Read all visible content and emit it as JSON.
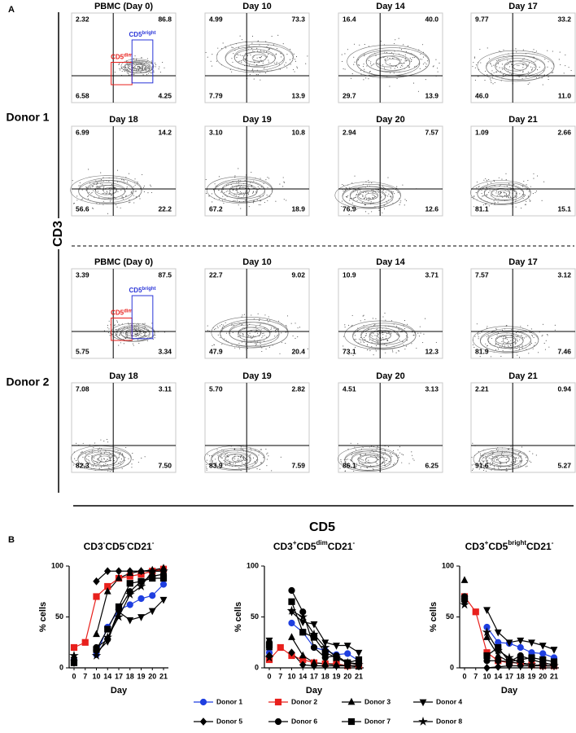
{
  "panel_a": {
    "label": "A",
    "y_axis_label": "CD3",
    "x_axis_label": "CD5",
    "donors": [
      {
        "label": "Donor 1",
        "gates": [
          {
            "base": "CD5",
            "sup": "dim",
            "color": "#e8201c"
          },
          {
            "base": "CD5",
            "sup": "bright",
            "color": "#2a35d8"
          }
        ],
        "plots": [
          {
            "title": "PBMC (Day 0)",
            "quadrants": [
              "2.32",
              "86.8",
              "6.58",
              "4.25"
            ]
          },
          {
            "title": "Day 10",
            "quadrants": [
              "4.99",
              "73.3",
              "7.79",
              "13.9"
            ]
          },
          {
            "title": "Day 14",
            "quadrants": [
              "16.4",
              "40.0",
              "29.7",
              "13.9"
            ]
          },
          {
            "title": "Day 17",
            "quadrants": [
              "9.77",
              "33.2",
              "46.0",
              "11.0"
            ]
          },
          {
            "title": "Day 18",
            "quadrants": [
              "6.99",
              "14.2",
              "56.6",
              "22.2"
            ]
          },
          {
            "title": "Day 19",
            "quadrants": [
              "3.10",
              "10.8",
              "67.2",
              "18.9"
            ]
          },
          {
            "title": "Day 20",
            "quadrants": [
              "2.94",
              "7.57",
              "76.9",
              "12.6"
            ]
          },
          {
            "title": "Day 21",
            "quadrants": [
              "1.09",
              "2.66",
              "81.1",
              "15.1"
            ]
          }
        ]
      },
      {
        "label": "Donor 2",
        "gates": [
          {
            "base": "CD5",
            "sup": "dim",
            "color": "#e8201c"
          },
          {
            "base": "CD5",
            "sup": "bright",
            "color": "#2a35d8"
          }
        ],
        "plots": [
          {
            "title": "PBMC (Day 0)",
            "quadrants": [
              "3.39",
              "87.5",
              "5.75",
              "3.34"
            ]
          },
          {
            "title": "Day 10",
            "quadrants": [
              "22.7",
              "9.02",
              "47.9",
              "20.4"
            ]
          },
          {
            "title": "Day 14",
            "quadrants": [
              "10.9",
              "3.71",
              "73.1",
              "12.3"
            ]
          },
          {
            "title": "Day 17",
            "quadrants": [
              "7.57",
              "3.12",
              "81.9",
              "7.46"
            ]
          },
          {
            "title": "Day 18",
            "quadrants": [
              "7.08",
              "3.11",
              "82.3",
              "7.50"
            ]
          },
          {
            "title": "Day 19",
            "quadrants": [
              "5.70",
              "2.82",
              "83.9",
              "7.59"
            ]
          },
          {
            "title": "Day 20",
            "quadrants": [
              "4.51",
              "3.13",
              "86.1",
              "6.25"
            ]
          },
          {
            "title": "Day 21",
            "quadrants": [
              "2.21",
              "0.94",
              "91.6",
              "5.27"
            ]
          }
        ]
      }
    ]
  },
  "panel_b": {
    "label": "B"
  },
  "chart_data": [
    {
      "type": "line",
      "title": [
        "CD3",
        "-",
        "CD5",
        "-",
        "CD21",
        "-"
      ],
      "y_label": "% cells",
      "x_label": "Day",
      "categories": [
        "0",
        "7",
        "10",
        "14",
        "17",
        "18",
        "19",
        "20",
        "21"
      ],
      "ylim": [
        0,
        100
      ],
      "yticks": [
        0,
        50,
        100
      ],
      "series": [
        {
          "name": "Donor 1",
          "color": "#1f3fe0",
          "marker": "circle",
          "values": [
            8,
            null,
            13,
            40,
            57,
            62,
            68,
            71,
            82
          ]
        },
        {
          "name": "Donor 2",
          "color": "#e8201c",
          "marker": "square",
          "values": [
            20,
            25,
            70,
            80,
            88,
            90,
            92,
            95,
            97
          ]
        },
        {
          "name": "Donor 3",
          "color": "#000000",
          "marker": "triangle",
          "values": [
            10,
            null,
            33,
            75,
            88,
            93,
            95,
            96,
            98
          ]
        },
        {
          "name": "Donor 4",
          "color": "#000000",
          "marker": "triangle-down",
          "values": [
            5,
            null,
            15,
            26,
            55,
            47,
            50,
            56,
            67
          ]
        },
        {
          "name": "Donor 5",
          "color": "#000000",
          "marker": "diamond",
          "values": [
            10,
            null,
            85,
            95,
            95,
            95,
            95,
            95,
            95
          ]
        },
        {
          "name": "Donor 6",
          "color": "#000000",
          "marker": "circle",
          "values": [
            6,
            null,
            20,
            28,
            57,
            75,
            85,
            90,
            92
          ]
        },
        {
          "name": "Donor 7",
          "color": "#000000",
          "marker": "square",
          "values": [
            5,
            null,
            18,
            38,
            60,
            83,
            85,
            88,
            88
          ]
        },
        {
          "name": "Donor 8",
          "color": "#000000",
          "marker": "star",
          "values": [
            12,
            null,
            12,
            30,
            50,
            72,
            80,
            95,
            95
          ]
        }
      ]
    },
    {
      "type": "line",
      "title": [
        "CD3",
        "+",
        "CD5",
        "dim",
        "CD21",
        "-"
      ],
      "y_label": "% cells",
      "x_label": "Day",
      "categories": [
        "0",
        "7",
        "10",
        "14",
        "17",
        "18",
        "19",
        "20",
        "21"
      ],
      "ylim": [
        0,
        100
      ],
      "yticks": [
        0,
        50,
        100
      ],
      "series": [
        {
          "color": "#1f3fe0",
          "marker": "circle",
          "values": [
            15,
            null,
            44,
            35,
            20,
            17,
            13,
            14,
            7
          ]
        },
        {
          "color": "#e8201c",
          "marker": "square",
          "values": [
            8,
            20,
            12,
            8,
            5,
            4,
            4,
            2,
            2
          ]
        },
        {
          "color": "#000000",
          "marker": "triangle",
          "values": [
            20,
            null,
            30,
            12,
            5,
            4,
            3,
            2,
            1
          ]
        },
        {
          "color": "#000000",
          "marker": "triangle-down",
          "values": [
            27,
            null,
            55,
            45,
            43,
            25,
            22,
            22,
            15
          ]
        },
        {
          "color": "#000000",
          "marker": "diamond",
          "values": [
            12,
            null,
            15,
            3,
            2,
            2,
            2,
            2,
            2
          ]
        },
        {
          "color": "#000000",
          "marker": "circle",
          "values": [
            25,
            null,
            76,
            55,
            20,
            10,
            12,
            5,
            4
          ]
        },
        {
          "color": "#000000",
          "marker": "square",
          "values": [
            22,
            null,
            65,
            35,
            30,
            15,
            10,
            5,
            8
          ]
        },
        {
          "color": "#000000",
          "marker": "star",
          "values": [
            10,
            null,
            56,
            50,
            33,
            20,
            10,
            5,
            3
          ]
        }
      ]
    },
    {
      "type": "line",
      "title": [
        "CD3",
        "+",
        "CD5",
        "bright",
        "CD21",
        "-"
      ],
      "y_label": "% cells",
      "x_label": "Day",
      "categories": [
        "0",
        "7",
        "10",
        "14",
        "17",
        "18",
        "19",
        "20",
        "21"
      ],
      "ylim": [
        0,
        100
      ],
      "yticks": [
        0,
        50,
        100
      ],
      "series": [
        {
          "color": "#1f3fe0",
          "marker": "circle",
          "values": [
            70,
            null,
            40,
            25,
            24,
            20,
            15,
            14,
            10
          ]
        },
        {
          "color": "#e8201c",
          "marker": "square",
          "values": [
            70,
            55,
            15,
            7,
            5,
            5,
            3,
            2,
            2
          ]
        },
        {
          "color": "#000000",
          "marker": "triangle",
          "values": [
            86,
            null,
            30,
            12,
            6,
            4,
            3,
            2,
            2
          ]
        },
        {
          "color": "#000000",
          "marker": "triangle-down",
          "values": [
            65,
            null,
            57,
            35,
            25,
            27,
            25,
            22,
            18
          ]
        },
        {
          "color": "#000000",
          "marker": "diamond",
          "values": [
            65,
            null,
            0,
            1,
            2,
            2,
            2,
            2,
            2
          ]
        },
        {
          "color": "#000000",
          "marker": "circle",
          "values": [
            70,
            null,
            7,
            7,
            6,
            12,
            8,
            5,
            3
          ]
        },
        {
          "color": "#000000",
          "marker": "square",
          "values": [
            68,
            null,
            12,
            20,
            6,
            8,
            10,
            8,
            6
          ]
        },
        {
          "color": "#000000",
          "marker": "star",
          "values": [
            62,
            null,
            35,
            17,
            10,
            5,
            3,
            2,
            2
          ]
        }
      ]
    }
  ]
}
